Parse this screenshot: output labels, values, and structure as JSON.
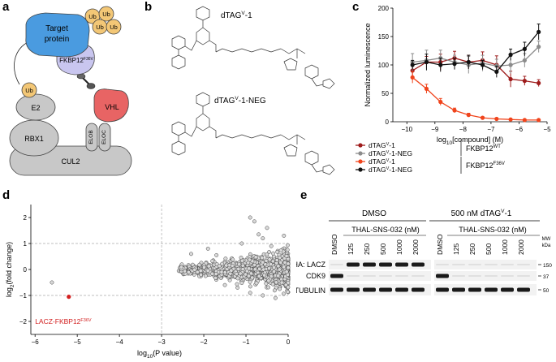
{
  "panels": {
    "a": {
      "letter": "a",
      "ub_label": "Ub",
      "target_label_line1": "Target",
      "target_label_line2": "protein",
      "fkbp_label": "FKBP12",
      "fkbp_sup": "F36V",
      "vhl_label": "VHL",
      "e2_label": "E2",
      "rbx1_label": "RBX1",
      "elob_label": "ELOB",
      "eloc_label": "ELOC",
      "cul2_label": "CUL2",
      "colors": {
        "target": "#4a9be0",
        "fkbp": "#c9c6ef",
        "vhl": "#e86464",
        "grey": "#c8c8c8",
        "ub": "#f3c776"
      }
    },
    "b": {
      "letter": "b",
      "compound1_name": "dTAG",
      "compound1_sup": "V",
      "compound1_suffix": "-1",
      "compound2_name": "dTAG",
      "compound2_sup": "V",
      "compound2_suffix": "-1-NEG"
    },
    "c": {
      "letter": "c",
      "legend": {
        "items": [
          {
            "name": "dTAG",
            "sup": "V",
            "suffix": "-1",
            "color": "#9e1b1b"
          },
          {
            "name": "dTAG",
            "sup": "V",
            "suffix": "-1-NEG",
            "color": "#8c8c8c"
          },
          {
            "name": "dTAG",
            "sup": "V",
            "suffix": "-1",
            "color": "#f0441c"
          },
          {
            "name": "dTAG",
            "sup": "V",
            "suffix": "-1-NEG",
            "color": "#111111"
          }
        ],
        "group1": "FKBP12",
        "group1_sup": "WT",
        "group2": "FKBP12",
        "group2_sup": "F36V"
      }
    },
    "d": {
      "letter": "d",
      "highlight_label": "LACZ-FKBP12",
      "highlight_sup": "F36V",
      "highlight_color": "#d22020"
    },
    "e": {
      "letter": "e",
      "group1": "DMSO",
      "group2": "500 nM dTAG",
      "group2_sup": "V",
      "group2_suffix": "-1",
      "sub_label1": "THAL-SNS-032 (nM)",
      "sub_label2": "THAL-SNS-032 (nM)",
      "lanes": [
        "DMSO",
        "125",
        "250",
        "500",
        "1000",
        "2000",
        "DMSO",
        "125",
        "250",
        "500",
        "1000",
        "2000"
      ],
      "blots": [
        "HA: LACZ",
        "CDK9",
        "α-TUBULIN"
      ],
      "mw_header1": "MW",
      "mw_header2": "kDa",
      "mw_markers": [
        "150",
        "37",
        "50"
      ]
    }
  },
  "chart_data": [
    {
      "type": "line",
      "panel": "c",
      "xlabel_prefix": "log",
      "xlabel_sub": "10",
      "xlabel_suffix": "[compound] (M)",
      "ylabel": "Normalized luminescence",
      "xlim": [
        -10.5,
        -5
      ],
      "ylim": [
        0,
        200
      ],
      "xticks": [
        -10,
        -9,
        -8,
        -7,
        -6,
        -5
      ],
      "yticks": [
        0,
        50,
        100,
        150,
        200
      ],
      "series": [
        {
          "color": "#9e1b1b",
          "x": [
            -9.8,
            -9.3,
            -8.8,
            -8.3,
            -7.8,
            -7.3,
            -6.8,
            -6.3,
            -5.8,
            -5.3
          ],
          "y": [
            90,
            105,
            105,
            112,
            105,
            108,
            100,
            75,
            72,
            68
          ],
          "err": [
            12,
            10,
            14,
            12,
            12,
            15,
            16,
            14,
            8,
            6
          ]
        },
        {
          "color": "#8c8c8c",
          "x": [
            -9.8,
            -9.3,
            -8.8,
            -8.3,
            -7.8,
            -7.3,
            -6.8,
            -6.3,
            -5.8,
            -5.3
          ],
          "y": [
            105,
            108,
            112,
            105,
            100,
            103,
            98,
            100,
            108,
            132
          ],
          "err": [
            15,
            18,
            14,
            12,
            15,
            14,
            12,
            15,
            12,
            10
          ]
        },
        {
          "color": "#f0441c",
          "x": [
            -9.8,
            -9.3,
            -8.8,
            -8.3,
            -7.8,
            -7.3,
            -6.8,
            -6.3,
            -5.8,
            -5.3
          ],
          "y": [
            78,
            58,
            35,
            20,
            12,
            7,
            5,
            4,
            3,
            3
          ],
          "err": [
            10,
            8,
            6,
            4,
            3,
            2,
            2,
            1,
            1,
            1
          ]
        },
        {
          "color": "#111111",
          "x": [
            -9.8,
            -9.3,
            -8.8,
            -8.3,
            -7.8,
            -7.3,
            -6.8,
            -6.3,
            -5.8,
            -5.3
          ],
          "y": [
            100,
            105,
            100,
            102,
            105,
            100,
            88,
            118,
            128,
            158
          ],
          "err": [
            8,
            14,
            12,
            10,
            12,
            8,
            10,
            10,
            12,
            14
          ]
        }
      ]
    },
    {
      "type": "scatter",
      "panel": "d",
      "xlabel_prefix": "log",
      "xlabel_sub": "10",
      "xlabel_suffix": "(P value)",
      "ylabel_prefix": "log",
      "ylabel_sub": "2",
      "ylabel_suffix": "(fold change)",
      "xlim": [
        -6.1,
        0
      ],
      "ylim": [
        -2.5,
        2.5
      ],
      "xticks": [
        -6,
        -5,
        -4,
        -3,
        -2,
        -1,
        0
      ],
      "yticks": [
        -2,
        -1,
        0,
        1,
        2
      ],
      "threshold_x": -3,
      "threshold_y": [
        -1,
        1
      ],
      "highlight": {
        "x": -5.2,
        "y": -1.05
      },
      "outliers": [
        [
          -5.6,
          -0.5
        ],
        [
          -1.9,
          0.8
        ],
        [
          -0.9,
          2.0
        ],
        [
          -0.8,
          1.85
        ],
        [
          -0.6,
          1.2
        ],
        [
          -0.5,
          1.6
        ],
        [
          -0.7,
          1.35
        ],
        [
          -1.1,
          1.0
        ],
        [
          -0.4,
          0.9
        ],
        [
          -1.2,
          -0.7
        ],
        [
          -0.9,
          -0.9
        ],
        [
          -0.3,
          -1.1
        ],
        [
          -1.5,
          -0.6
        ],
        [
          -0.2,
          -0.75
        ],
        [
          -2.3,
          0.6
        ],
        [
          -1.7,
          0.55
        ],
        [
          -0.6,
          -1.0
        ],
        [
          -0.1,
          1.3
        ]
      ]
    }
  ]
}
